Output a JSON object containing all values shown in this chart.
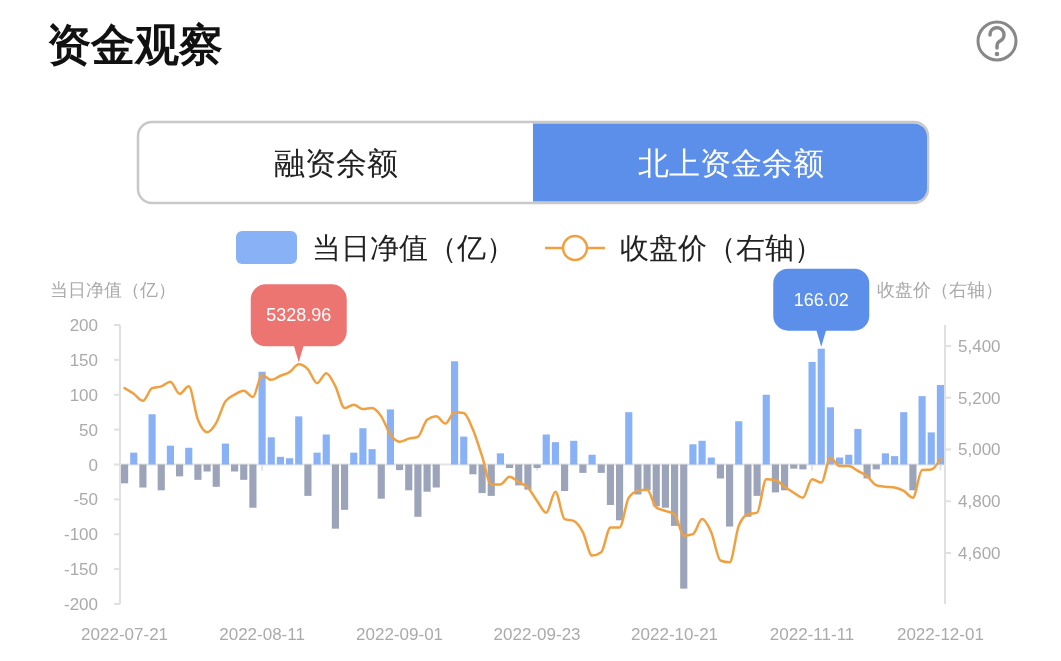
{
  "chart_data": {
    "type": "bar",
    "title": "资金观察",
    "annotations": [
      "融资余额",
      "北上资金余额"
    ],
    "ylabel": "当日净值（亿）",
    "y2label": "收盘价（右轴）",
    "legend": "top",
    "categories": [
      "2022-07-21",
      null,
      null,
      null,
      null,
      null,
      null,
      null,
      null,
      null,
      null,
      null,
      null,
      null,
      null,
      "2022-08-11",
      null,
      null,
      null,
      null,
      null,
      null,
      null,
      null,
      null,
      null,
      null,
      null,
      null,
      null,
      "2022-09-01",
      null,
      null,
      null,
      null,
      null,
      null,
      null,
      null,
      null,
      null,
      null,
      null,
      null,
      null,
      "2022-09-23",
      null,
      null,
      null,
      null,
      null,
      null,
      null,
      null,
      null,
      null,
      null,
      null,
      null,
      null,
      "2022-10-21",
      null,
      null,
      null,
      null,
      null,
      null,
      null,
      null,
      null,
      null,
      null,
      null,
      null,
      null,
      "2022-11-11",
      null,
      null,
      null,
      null,
      null,
      null,
      null,
      null,
      null,
      null,
      null,
      null,
      null,
      "2022-12-01"
    ],
    "ylim": [
      -200,
      200
    ],
    "yticks": [
      -200,
      -150,
      -100,
      -50,
      0,
      50,
      100,
      150,
      200
    ],
    "y2lim": [
      4403,
      5481
    ],
    "y2ticks": [
      {
        "value": 4600,
        "label": "4,600"
      },
      {
        "value": 4800,
        "label": "4,800"
      },
      {
        "value": 5000,
        "label": "5,000"
      },
      {
        "value": 5200,
        "label": "5,200"
      },
      {
        "value": 5400,
        "label": "5,400"
      }
    ],
    "series": [
      {
        "name": "当日净值（亿）",
        "color": "#89b1f6",
        "values": [
          -27,
          17,
          -33,
          72,
          -37,
          27,
          -17,
          24,
          -22,
          -10,
          -32,
          30,
          -10,
          -22,
          -62,
          133,
          39,
          11,
          9,
          69,
          -45,
          17,
          43,
          -92,
          -65,
          17,
          52,
          22,
          -49,
          79,
          -8,
          -37,
          -75,
          -39,
          -33,
          null,
          148,
          40,
          -14,
          -41,
          -45,
          16,
          -5,
          -30,
          -36,
          -5,
          43,
          32,
          -38,
          34,
          -12,
          14,
          -12,
          -58,
          -80,
          75,
          -43,
          -37,
          -60,
          -62,
          -88,
          -178,
          29,
          34,
          10,
          -20,
          -89,
          62,
          -75,
          -45,
          100,
          -40,
          -37,
          -6,
          -7,
          147,
          166.02,
          82,
          10,
          14,
          51,
          -20,
          -7,
          16,
          12,
          75,
          -37,
          98,
          46,
          114
        ],
        "colors": [
          "#9ba4b8",
          "#89b1f6",
          "#9ba4b8",
          "#89b1f6",
          "#9ba4b8",
          "#89b1f6",
          "#9ba4b8",
          "#89b1f6",
          "#9ba4b8",
          "#9ba4b8",
          "#9ba4b8",
          "#89b1f6",
          "#9ba4b8",
          "#9ba4b8",
          "#9ba4b8",
          "#89b1f6",
          "#89b1f6",
          "#89b1f6",
          "#89b1f6",
          "#89b1f6",
          "#9ba4b8",
          "#89b1f6",
          "#89b1f6",
          "#9ba4b8",
          "#9ba4b8",
          "#89b1f6",
          "#89b1f6",
          "#89b1f6",
          "#9ba4b8",
          "#89b1f6",
          "#9ba4b8",
          "#9ba4b8",
          "#9ba4b8",
          "#9ba4b8",
          "#9ba4b8",
          null,
          "#89b1f6",
          "#89b1f6",
          "#9ba4b8",
          "#9ba4b8",
          "#9ba4b8",
          "#89b1f6",
          "#9ba4b8",
          "#9ba4b8",
          "#9ba4b8",
          "#9ba4b8",
          "#89b1f6",
          "#89b1f6",
          "#9ba4b8",
          "#89b1f6",
          "#9ba4b8",
          "#89b1f6",
          "#9ba4b8",
          "#9ba4b8",
          "#9ba4b8",
          "#89b1f6",
          "#9ba4b8",
          "#9ba4b8",
          "#9ba4b8",
          "#9ba4b8",
          "#9ba4b8",
          "#9ba4b8",
          "#89b1f6",
          "#89b1f6",
          "#89b1f6",
          "#9ba4b8",
          "#9ba4b8",
          "#89b1f6",
          "#9ba4b8",
          "#9ba4b8",
          "#89b1f6",
          "#9ba4b8",
          "#9ba4b8",
          "#9ba4b8",
          "#9ba4b8",
          "#89b1f6",
          "#89b1f6",
          "#89b1f6",
          "#89b1f6",
          "#89b1f6",
          "#89b1f6",
          "#9ba4b8",
          "#9ba4b8",
          "#89b1f6",
          "#89b1f6",
          "#89b1f6",
          "#9ba4b8",
          "#89b1f6",
          "#89b1f6",
          "#89b1f6"
        ],
        "value_labels": [
          null,
          null,
          null,
          null,
          null,
          null,
          null,
          null,
          null,
          null,
          null,
          null,
          null,
          null,
          null,
          null,
          null,
          null,
          null,
          null,
          null,
          null,
          null,
          null,
          null,
          null,
          null,
          null,
          null,
          null,
          null,
          null,
          null,
          null,
          null,
          null,
          null,
          null,
          null,
          null,
          null,
          null,
          null,
          null,
          null,
          null,
          null,
          null,
          null,
          null,
          null,
          null,
          null,
          null,
          null,
          null,
          null,
          null,
          null,
          null,
          null,
          null,
          null,
          null,
          null,
          null,
          null,
          null,
          null,
          null,
          null,
          null,
          null,
          null,
          null,
          null,
          "166.02",
          null,
          null,
          null,
          null,
          null,
          null,
          null,
          null,
          null,
          null,
          null,
          null,
          null
        ]
      },
      {
        "type": "line",
        "axis": "y2",
        "name": "收盘价（右轴）",
        "color": "#f0a040",
        "values": [
          5237,
          5215,
          5188,
          5237,
          5244,
          5262,
          5215,
          5244,
          5115,
          5067,
          5103,
          5186,
          5212,
          5227,
          5203,
          5288,
          5269,
          5285,
          5299,
          5328.96,
          5310,
          5256,
          5295,
          5244,
          5160,
          5173,
          5156,
          5160,
          5128,
          5058,
          5030,
          5042,
          5049,
          5115,
          5128,
          5100,
          5144,
          5141,
          5077,
          4974,
          4865,
          4865,
          4895,
          4874,
          4853,
          4801,
          4756,
          4837,
          4731,
          4724,
          4680,
          4590,
          4603,
          4699,
          4699,
          4814,
          4840,
          4844,
          4776,
          4763,
          4750,
          4667,
          4673,
          4731,
          4680,
          4571,
          4564,
          4705,
          4750,
          4756,
          4885,
          4881,
          4856,
          4833,
          4814,
          4885,
          4872,
          4968,
          4936,
          4936,
          4917,
          4897,
          4862,
          4856,
          4853,
          4840,
          4814,
          4921,
          4923,
          4964
        ],
        "value_labels": [
          null,
          null,
          null,
          null,
          null,
          null,
          null,
          null,
          null,
          null,
          null,
          null,
          null,
          null,
          null,
          null,
          null,
          null,
          null,
          "5328.96",
          null,
          null,
          null,
          null,
          null,
          null,
          null,
          null,
          null,
          null,
          null,
          null,
          null,
          null,
          null,
          null,
          null,
          null,
          null,
          null,
          null,
          null,
          null,
          null,
          null,
          null,
          null,
          null,
          null,
          null,
          null,
          null,
          null,
          null,
          null,
          null,
          null,
          null,
          null,
          null,
          null,
          null,
          null,
          null,
          null,
          null,
          null,
          null,
          null,
          null,
          null,
          null,
          null,
          null,
          null,
          null,
          null,
          null,
          null,
          null,
          null,
          null,
          null,
          null,
          null,
          null,
          null,
          null,
          null,
          null
        ]
      }
    ]
  }
}
